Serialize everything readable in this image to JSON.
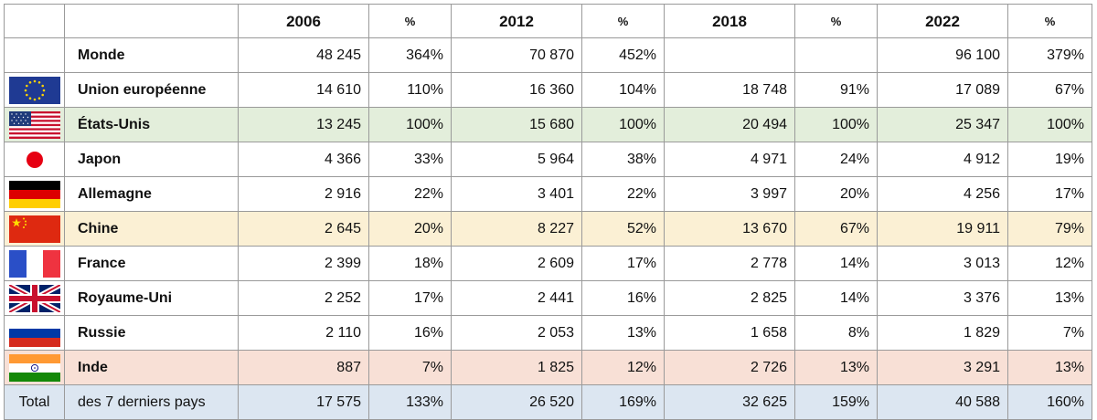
{
  "header": {
    "col_2006": "2006",
    "pct_1": "%",
    "col_2012": "2012",
    "pct_2": "%",
    "col_2018": "2018",
    "pct_3": "%",
    "col_2022": "2022",
    "pct_4": "%"
  },
  "rows": [
    {
      "label": "Monde",
      "flag_icon": "",
      "v2006": "48 245",
      "p2006": "364%",
      "v2012": "70 870",
      "p2012": "452%",
      "v2018": "",
      "p2018": "",
      "v2022": "96 100",
      "p2022": "379%"
    },
    {
      "label": "Union européenne",
      "flag_icon": "eu-flag-icon",
      "v2006": "14 610",
      "p2006": "110%",
      "v2012": "16 360",
      "p2012": "104%",
      "v2018": "18 748",
      "p2018": "91%",
      "v2022": "17 089",
      "p2022": "67%"
    },
    {
      "label": "États-Unis",
      "flag_icon": "us-flag-icon",
      "v2006": "13 245",
      "p2006": "100%",
      "v2012": "15 680",
      "p2012": "100%",
      "v2018": "20 494",
      "p2018": "100%",
      "v2022": "25 347",
      "p2022": "100%"
    },
    {
      "label": "Japon",
      "flag_icon": "japan-flag-icon",
      "v2006": "4 366",
      "p2006": "33%",
      "v2012": "5 964",
      "p2012": "38%",
      "v2018": "4 971",
      "p2018": "24%",
      "v2022": "4 912",
      "p2022": "19%"
    },
    {
      "label": "Allemagne",
      "flag_icon": "germany-flag-icon",
      "v2006": "2 916",
      "p2006": "22%",
      "v2012": "3 401",
      "p2012": "22%",
      "v2018": "3 997",
      "p2018": "20%",
      "v2022": "4 256",
      "p2022": "17%"
    },
    {
      "label": "Chine",
      "flag_icon": "china-flag-icon",
      "v2006": "2 645",
      "p2006": "20%",
      "v2012": "8 227",
      "p2012": "52%",
      "v2018": "13 670",
      "p2018": "67%",
      "v2022": "19 911",
      "p2022": "79%"
    },
    {
      "label": "France",
      "flag_icon": "france-flag-icon",
      "v2006": "2 399",
      "p2006": "18%",
      "v2012": "2 609",
      "p2012": "17%",
      "v2018": "2 778",
      "p2018": "14%",
      "v2022": "3 013",
      "p2022": "12%"
    },
    {
      "label": "Royaume-Uni",
      "flag_icon": "uk-flag-icon",
      "v2006": "2 252",
      "p2006": "17%",
      "v2012": "2 441",
      "p2012": "16%",
      "v2018": "2 825",
      "p2018": "14%",
      "v2022": "3 376",
      "p2022": "13%"
    },
    {
      "label": "Russie",
      "flag_icon": "russia-flag-icon",
      "v2006": "2 110",
      "p2006": "16%",
      "v2012": "2 053",
      "p2012": "13%",
      "v2018": "1 658",
      "p2018": "8%",
      "v2022": "1 829",
      "p2022": "7%"
    },
    {
      "label": "Inde",
      "flag_icon": "india-flag-icon",
      "v2006": "887",
      "p2006": "7%",
      "v2012": "1 825",
      "p2012": "12%",
      "v2018": "2 726",
      "p2018": "13%",
      "v2022": "3 291",
      "p2022": "13%"
    }
  ],
  "total": {
    "first": "Total",
    "label": "des 7 derniers pays",
    "v2006": "17 575",
    "p2006": "133%",
    "v2012": "26 520",
    "p2012": "169%",
    "v2018": "32 625",
    "p2018": "159%",
    "v2022": "40 588",
    "p2022": "160%"
  },
  "colors": {
    "us_highlight": "#e3eedb",
    "china_highlight": "#fbf0d4",
    "india_highlight": "#f8e0d6",
    "total_highlight": "#dce6f1",
    "border": "#9a9a9a"
  }
}
